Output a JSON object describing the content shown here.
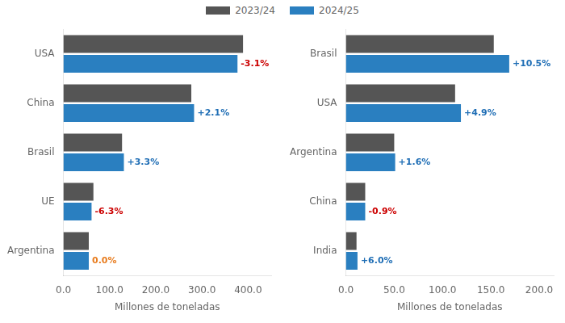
{
  "chart_data": [
    {
      "type": "bar",
      "orientation": "horizontal",
      "categories": [
        "USA",
        "China",
        "Brasil",
        "UE",
        "Argentina"
      ],
      "series": [
        {
          "name": "2023/24",
          "color": "#555555",
          "values": [
            389,
            277,
            127,
            65,
            55
          ]
        },
        {
          "name": "2024/25",
          "color": "#2a7fc0",
          "values": [
            377,
            283,
            131,
            61,
            55
          ]
        }
      ],
      "xlabel": "Millones de toneladas",
      "xlim": [
        0,
        450
      ],
      "xticks": [
        {
          "value": 0,
          "label": "0.0"
        },
        {
          "value": 100,
          "label": "100.0"
        },
        {
          "value": 200,
          "label": "200.0"
        },
        {
          "value": 300,
          "label": "300.0"
        },
        {
          "value": 400,
          "label": "400.0"
        }
      ],
      "grid": false,
      "legend": "upper center",
      "annotations": [
        {
          "category": "USA",
          "series": "2024/25",
          "text": "-3.1%",
          "color": "#cc0000"
        },
        {
          "category": "China",
          "series": "2024/25",
          "text": "+2.1%",
          "color": "#1f6eb5"
        },
        {
          "category": "Brasil",
          "series": "2024/25",
          "text": "+3.3%",
          "color": "#1f6eb5"
        },
        {
          "category": "UE",
          "series": "2024/25",
          "text": "-6.3%",
          "color": "#cc0000"
        },
        {
          "category": "Argentina",
          "series": "2024/25",
          "text": "0.0%",
          "color": "#e87c1e"
        }
      ]
    },
    {
      "type": "bar",
      "orientation": "horizontal",
      "categories": [
        "Brasil",
        "USA",
        "Argentina",
        "China",
        "India"
      ],
      "series": [
        {
          "name": "2023/24",
          "color": "#555555",
          "values": [
            153,
            113,
            50,
            20,
            11
          ]
        },
        {
          "name": "2024/25",
          "color": "#2a7fc0",
          "values": [
            169,
            119,
            51,
            20,
            12
          ]
        }
      ],
      "xlabel": "Millones de toneladas",
      "xlim": [
        0,
        215
      ],
      "xticks": [
        {
          "value": 0,
          "label": "0.0"
        },
        {
          "value": 50,
          "label": "50.0"
        },
        {
          "value": 100,
          "label": "100.0"
        },
        {
          "value": 150,
          "label": "150.0"
        },
        {
          "value": 200,
          "label": "200.0"
        }
      ],
      "grid": false,
      "annotations": [
        {
          "category": "Brasil",
          "series": "2024/25",
          "text": "+10.5%",
          "color": "#1f6eb5"
        },
        {
          "category": "USA",
          "series": "2024/25",
          "text": "+4.9%",
          "color": "#1f6eb5"
        },
        {
          "category": "Argentina",
          "series": "2024/25",
          "text": "+1.6%",
          "color": "#1f6eb5"
        },
        {
          "category": "China",
          "series": "2024/25",
          "text": "-0.9%",
          "color": "#cc0000"
        },
        {
          "category": "India",
          "series": "2024/25",
          "text": "+6.0%",
          "color": "#1f6eb5"
        }
      ]
    }
  ]
}
